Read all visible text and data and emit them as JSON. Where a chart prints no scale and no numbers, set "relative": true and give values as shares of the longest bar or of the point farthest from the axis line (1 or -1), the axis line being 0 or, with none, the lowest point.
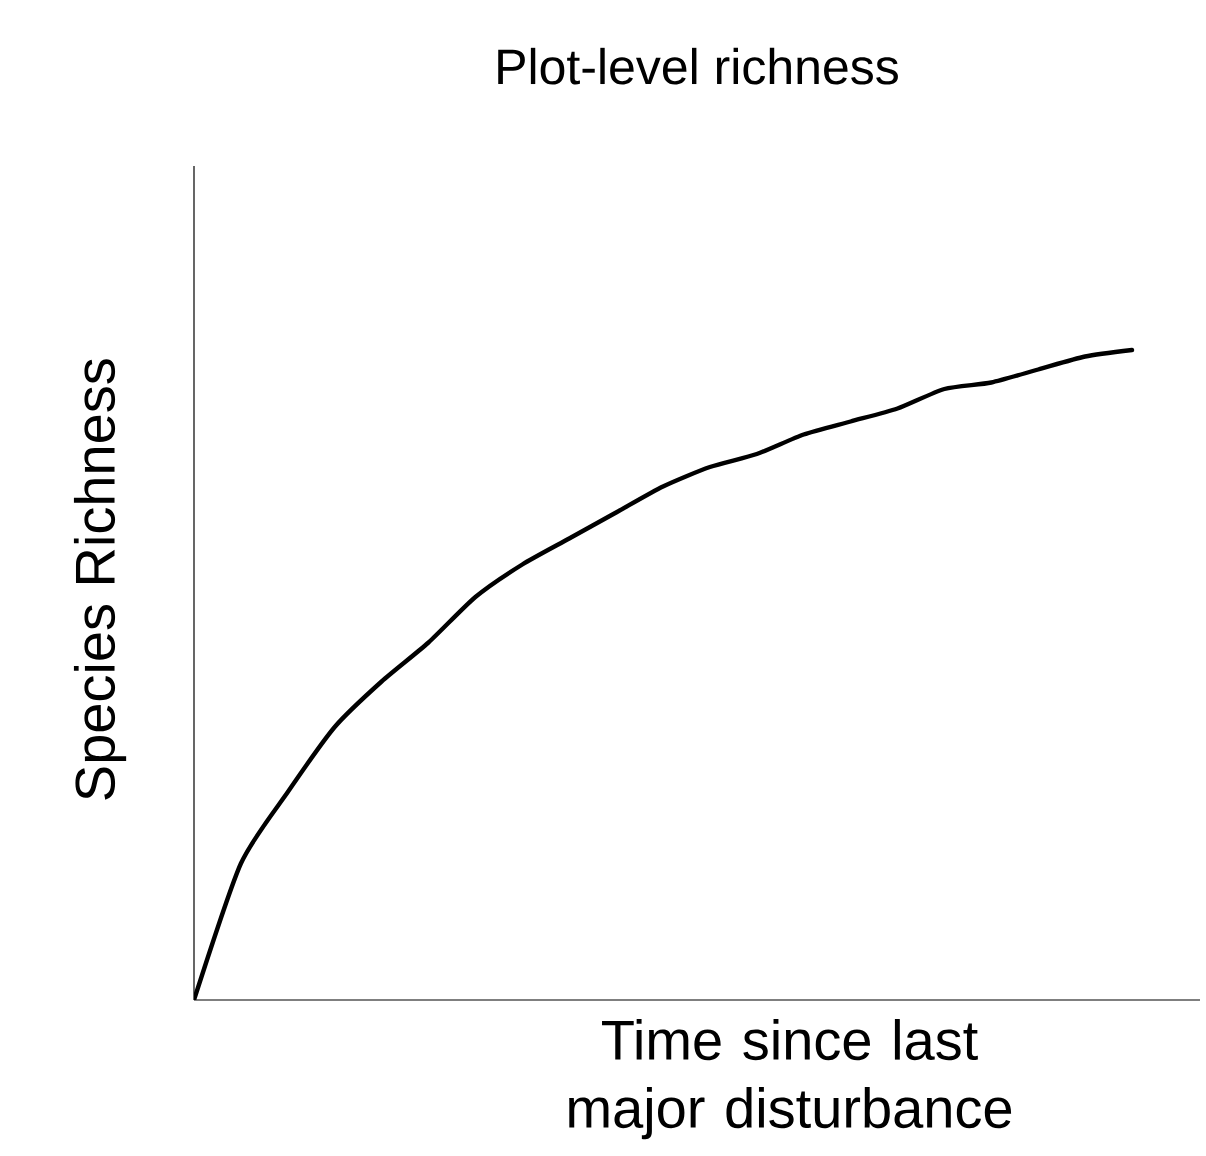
{
  "chart_data": {
    "type": "line",
    "title": "Plot-level richness",
    "xlabel": "Time since last major disturbance",
    "ylabel": "Species Richness",
    "relative": true,
    "tick_labels": false,
    "categories": [
      null,
      null,
      null,
      null,
      null,
      null,
      null,
      null,
      null,
      null,
      null,
      null,
      null,
      null,
      null,
      null,
      null,
      null,
      null,
      null,
      null
    ],
    "series": [
      {
        "color": "#000000",
        "values": [
          0,
          0.21,
          0.32,
          0.42,
          0.49,
          0.55,
          0.62,
          0.67,
          0.71,
          0.75,
          0.79,
          0.82,
          0.84,
          0.87,
          0.89,
          0.91,
          0.94,
          0.95,
          0.97,
          0.99,
          1
        ]
      }
    ]
  }
}
